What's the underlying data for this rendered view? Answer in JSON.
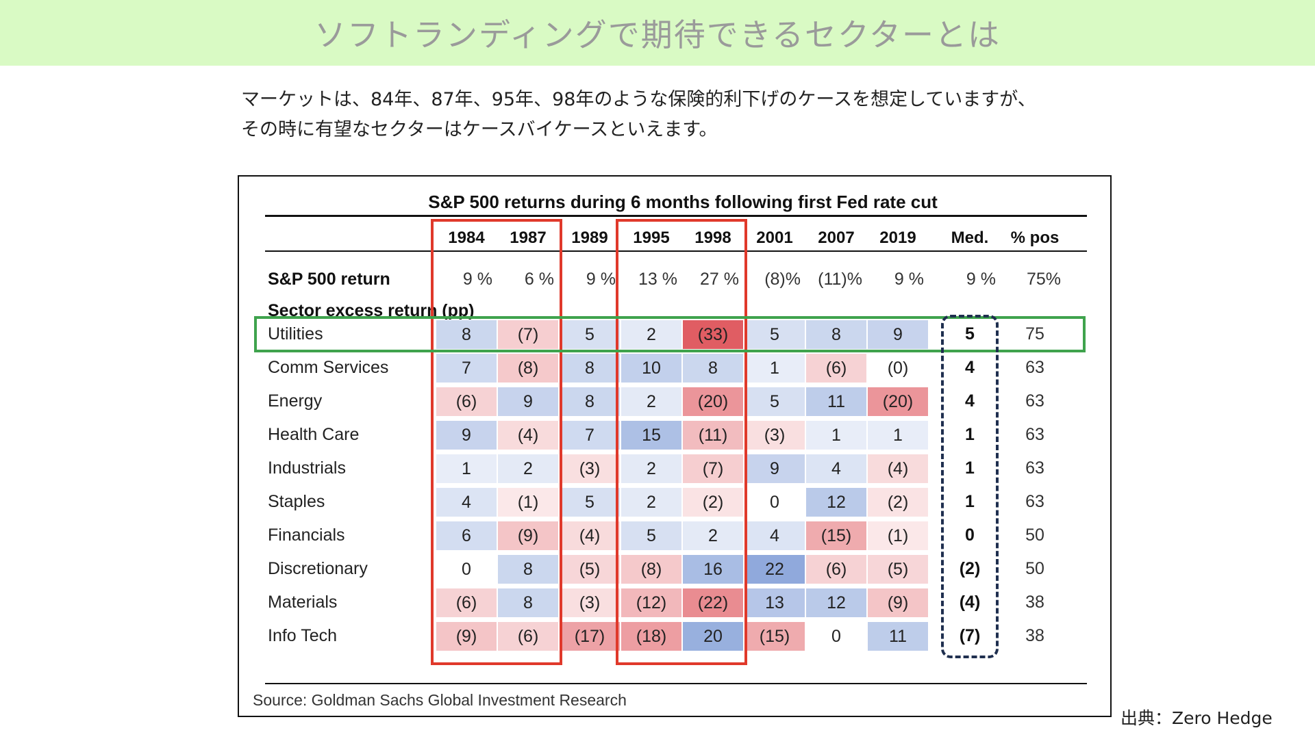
{
  "header": {
    "title": "ソフトランディングで期待できるセクターとは"
  },
  "intro": {
    "line1": "マーケットは、84年、87年、95年、98年のような保険的利下げのケースを想定していますが、",
    "line2": "その時に有望なセクターはケースバイケースといえます。"
  },
  "figure": {
    "title": "S&P 500 returns during 6 months following first Fed rate cut",
    "source": "Source: Goldman Sachs Global Investment Research"
  },
  "credit": "出典：Zero Hedge",
  "colors": {
    "accent_red": "#e0392b",
    "accent_green": "#3fa34d",
    "dashed_navy": "#1f2f4f",
    "title_bg": "#d9fac4"
  },
  "table": {
    "columns": [
      "1984",
      "1987",
      "1989",
      "1995",
      "1998",
      "2001",
      "2007",
      "2019",
      "Med.",
      "% pos"
    ],
    "sp500_label": "S&P 500 return",
    "sp500": [
      "9 %",
      "6 %",
      "9 %",
      "13 %",
      "27 %",
      "(8)%",
      "(11)%",
      "9 %",
      "9 %",
      "75%"
    ],
    "section_label": "Sector excess return (pp)",
    "rows": [
      {
        "name": "Utilities",
        "values": [
          "8",
          "(7)",
          "5",
          "2",
          "(33)",
          "5",
          "8",
          "9"
        ],
        "med": "5",
        "pos": "75"
      },
      {
        "name": "Comm Services",
        "values": [
          "7",
          "(8)",
          "8",
          "10",
          "8",
          "1",
          "(6)",
          "(0)"
        ],
        "med": "4",
        "pos": "63"
      },
      {
        "name": "Energy",
        "values": [
          "(6)",
          "9",
          "8",
          "2",
          "(20)",
          "5",
          "11",
          "(20)"
        ],
        "med": "4",
        "pos": "63"
      },
      {
        "name": "Health Care",
        "values": [
          "9",
          "(4)",
          "7",
          "15",
          "(11)",
          "(3)",
          "1",
          "1"
        ],
        "med": "1",
        "pos": "63"
      },
      {
        "name": "Industrials",
        "values": [
          "1",
          "2",
          "(3)",
          "2",
          "(7)",
          "9",
          "4",
          "(4)"
        ],
        "med": "1",
        "pos": "63"
      },
      {
        "name": "Staples",
        "values": [
          "4",
          "(1)",
          "5",
          "2",
          "(2)",
          "0",
          "12",
          "(2)"
        ],
        "med": "1",
        "pos": "63"
      },
      {
        "name": "Financials",
        "values": [
          "6",
          "(9)",
          "(4)",
          "5",
          "2",
          "4",
          "(15)",
          "(1)"
        ],
        "med": "0",
        "pos": "50"
      },
      {
        "name": "Discretionary",
        "values": [
          "0",
          "8",
          "(5)",
          "(8)",
          "16",
          "22",
          "(6)",
          "(5)"
        ],
        "med": "(2)",
        "pos": "50"
      },
      {
        "name": "Materials",
        "values": [
          "(6)",
          "8",
          "(3)",
          "(12)",
          "(22)",
          "13",
          "12",
          "(9)"
        ],
        "med": "(4)",
        "pos": "38"
      },
      {
        "name": "Info Tech",
        "values": [
          "(9)",
          "(6)",
          "(17)",
          "(18)",
          "20",
          "(15)",
          "0",
          "11"
        ],
        "med": "(7)",
        "pos": "38"
      }
    ]
  }
}
